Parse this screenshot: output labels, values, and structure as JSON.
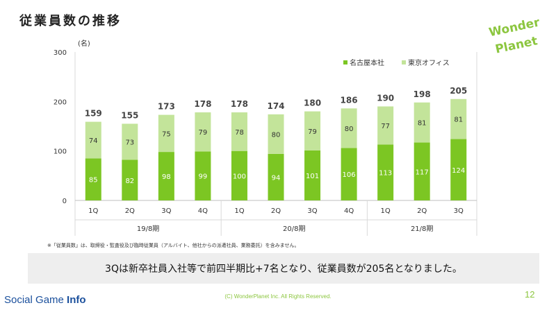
{
  "slide": {
    "title": "従業員数の推移",
    "note": "※「従業員数」は、取締役・監査役及び臨時従業員（アルバイト、他社からの派遣社員、業務委託）を含みません。",
    "summary": "3Qは新卒社員入社等で前四半期比+7名となり、従業員数が205名となりました。",
    "copyright": "(C)  WonderPlanet Inc.  All Rights Reserved.",
    "page_number": "12",
    "watermark_normal": "Social Game ",
    "watermark_bold": "Info",
    "logo_line1": "Wonder",
    "logo_line2": "Planet"
  },
  "colors": {
    "nagoya": "#7cc623",
    "tokyo": "#c3e49a",
    "brand": "#8cc63f"
  },
  "chart_data": {
    "type": "bar",
    "stacked": true,
    "y_unit": "(名)",
    "ylim": [
      0,
      300
    ],
    "yticks": [
      0,
      100,
      200,
      300
    ],
    "categories": [
      "1Q",
      "2Q",
      "3Q",
      "4Q",
      "1Q",
      "2Q",
      "3Q",
      "4Q",
      "1Q",
      "2Q",
      "3Q"
    ],
    "groups": [
      {
        "label": "19/8期",
        "count": 4
      },
      {
        "label": "20/8期",
        "count": 4
      },
      {
        "label": "21/8期",
        "count": 3
      }
    ],
    "series": [
      {
        "name": "名古屋本社",
        "values": [
          85,
          82,
          98,
          99,
          100,
          94,
          101,
          106,
          113,
          117,
          124
        ]
      },
      {
        "name": "東京オフィス",
        "values": [
          74,
          73,
          75,
          79,
          78,
          80,
          79,
          80,
          77,
          81,
          81
        ]
      }
    ],
    "totals": [
      159,
      155,
      173,
      178,
      178,
      174,
      180,
      186,
      190,
      198,
      205
    ],
    "legend_position": "top-right",
    "grid": false
  }
}
